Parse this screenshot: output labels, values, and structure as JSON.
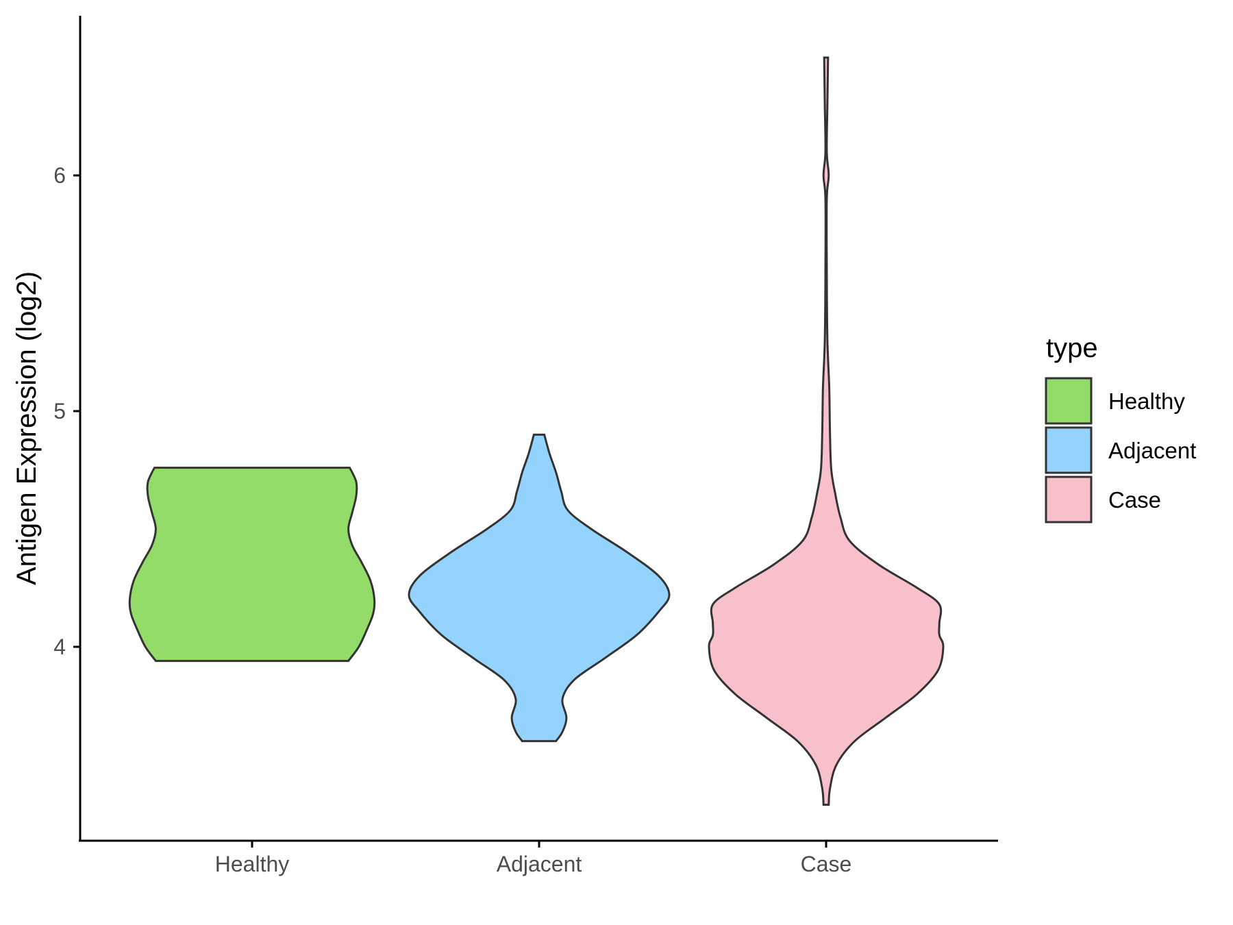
{
  "chart_data": {
    "type": "violin",
    "title": "",
    "xlabel": "",
    "ylabel": "Antigen Expression (log2)",
    "ylim": [
      3.25,
      6.75
    ],
    "yticks": [
      4,
      5,
      6
    ],
    "categories": [
      "Healthy",
      "Adjacent",
      "Case"
    ],
    "grid": false,
    "legend": {
      "title": "type",
      "position": "right",
      "entries": [
        "Healthy",
        "Adjacent",
        "Case"
      ]
    },
    "colors": {
      "Healthy": "#93dc69",
      "Adjacent": "#93d3fe",
      "Case": "#f7c0cb",
      "outline": "#333333"
    },
    "series": [
      {
        "name": "Healthy",
        "min": 3.94,
        "max": 4.76,
        "density_profile": [
          [
            3.94,
            0.74
          ],
          [
            4.0,
            0.82
          ],
          [
            4.07,
            0.88
          ],
          [
            4.14,
            0.93
          ],
          [
            4.2,
            0.94
          ],
          [
            4.28,
            0.91
          ],
          [
            4.36,
            0.84
          ],
          [
            4.43,
            0.77
          ],
          [
            4.5,
            0.74
          ],
          [
            4.57,
            0.77
          ],
          [
            4.64,
            0.8
          ],
          [
            4.7,
            0.8
          ],
          [
            4.76,
            0.75
          ]
        ]
      },
      {
        "name": "Adjacent",
        "min": 3.6,
        "max": 4.9,
        "density_profile": [
          [
            3.6,
            0.13
          ],
          [
            3.64,
            0.18
          ],
          [
            3.7,
            0.21
          ],
          [
            3.78,
            0.18
          ],
          [
            3.86,
            0.27
          ],
          [
            3.95,
            0.5
          ],
          [
            4.05,
            0.75
          ],
          [
            4.15,
            0.92
          ],
          [
            4.22,
            1.0
          ],
          [
            4.3,
            0.92
          ],
          [
            4.4,
            0.68
          ],
          [
            4.5,
            0.4
          ],
          [
            4.58,
            0.22
          ],
          [
            4.66,
            0.17
          ],
          [
            4.74,
            0.13
          ],
          [
            4.82,
            0.08
          ],
          [
            4.9,
            0.04
          ]
        ]
      },
      {
        "name": "Case",
        "min": 3.33,
        "max": 6.5,
        "density_profile": [
          [
            3.33,
            0.02
          ],
          [
            3.4,
            0.03
          ],
          [
            3.5,
            0.08
          ],
          [
            3.6,
            0.22
          ],
          [
            3.7,
            0.46
          ],
          [
            3.8,
            0.7
          ],
          [
            3.9,
            0.86
          ],
          [
            4.0,
            0.9
          ],
          [
            4.05,
            0.87
          ],
          [
            4.1,
            0.87
          ],
          [
            4.18,
            0.87
          ],
          [
            4.25,
            0.7
          ],
          [
            4.35,
            0.4
          ],
          [
            4.45,
            0.18
          ],
          [
            4.55,
            0.11
          ],
          [
            4.65,
            0.07
          ],
          [
            4.75,
            0.04
          ],
          [
            4.9,
            0.03
          ],
          [
            5.1,
            0.024
          ],
          [
            5.3,
            0.01
          ],
          [
            5.6,
            0.005
          ],
          [
            5.9,
            0.005
          ],
          [
            6.0,
            0.02
          ],
          [
            6.1,
            0.005
          ],
          [
            6.3,
            0.01
          ],
          [
            6.5,
            0.015
          ]
        ]
      }
    ]
  }
}
